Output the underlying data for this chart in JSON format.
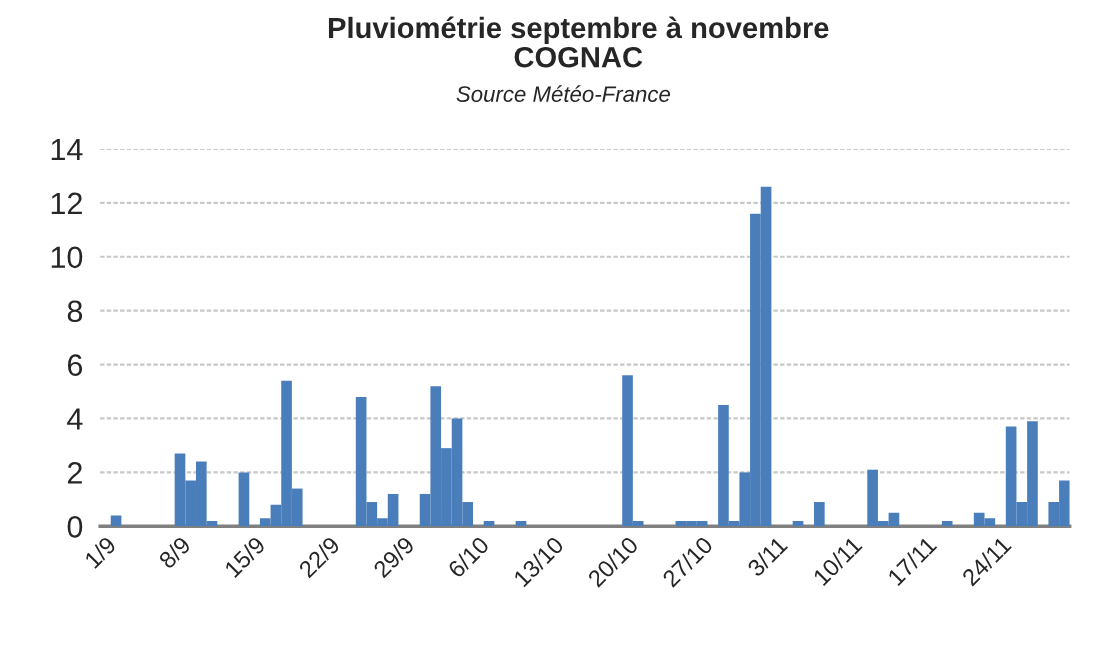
{
  "chart_data": {
    "type": "bar",
    "title": "Pluviométrie septembre à novembre\nCOGNAC",
    "annotations": [
      "Source Météo-France"
    ],
    "categories": [
      "1/9",
      null,
      null,
      null,
      null,
      null,
      null,
      "8/9",
      null,
      null,
      null,
      null,
      null,
      null,
      "15/9",
      null,
      null,
      null,
      null,
      null,
      null,
      "22/9",
      null,
      null,
      null,
      null,
      null,
      null,
      "29/9",
      null,
      null,
      null,
      null,
      null,
      null,
      "6/10",
      null,
      null,
      null,
      null,
      null,
      null,
      "13/10",
      null,
      null,
      null,
      null,
      null,
      null,
      "20/10",
      null,
      null,
      null,
      null,
      null,
      null,
      "27/10",
      null,
      null,
      null,
      null,
      null,
      null,
      "3/11",
      null,
      null,
      null,
      null,
      null,
      null,
      "10/11",
      null,
      null,
      null,
      null,
      null,
      null,
      "17/11",
      null,
      null,
      null,
      null,
      null,
      null,
      "24/11",
      null,
      null,
      null,
      null,
      null,
      null
    ],
    "values": [
      0,
      0.4,
      0,
      0,
      0,
      0,
      0,
      2.7,
      1.7,
      2.4,
      0.2,
      0,
      0,
      2.0,
      0,
      0.3,
      0.8,
      5.4,
      1.4,
      0,
      0,
      0,
      0,
      0,
      4.8,
      0.9,
      0.3,
      1.2,
      0,
      0,
      1.2,
      5.2,
      2.9,
      4.0,
      0.9,
      0,
      0.2,
      0,
      0,
      0.2,
      0,
      0,
      0,
      0,
      0,
      0,
      0,
      0,
      0,
      5.6,
      0.2,
      0,
      0,
      0,
      0.2,
      0.2,
      0.2,
      0,
      4.5,
      0.2,
      2.0,
      11.6,
      12.6,
      0,
      0,
      0.2,
      0,
      0.9,
      0,
      0,
      0,
      0,
      2.1,
      0.2,
      0.5,
      0,
      0,
      0,
      0,
      0.2,
      0,
      0,
      0.5,
      0.3,
      0,
      3.7,
      0.9,
      3.9,
      0,
      0.9,
      1.7
    ],
    "color": "#4a7ebb",
    "ylim": [
      0,
      14
    ],
    "yticks": [
      0,
      2,
      4,
      6,
      8,
      10,
      12,
      14
    ],
    "grid": "y"
  }
}
